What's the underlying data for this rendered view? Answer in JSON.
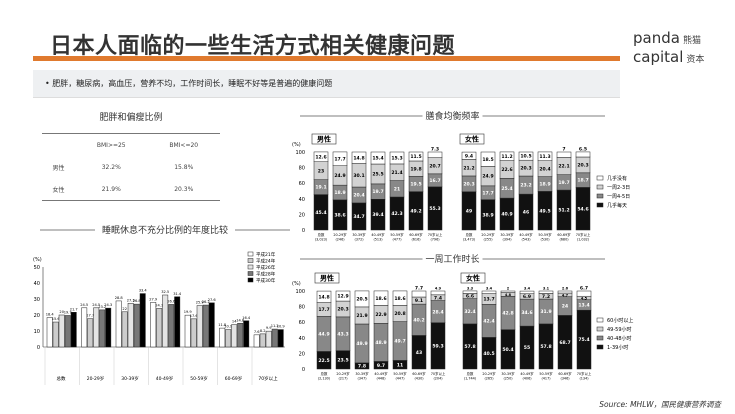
{
  "header": {
    "title": "日本人面临的一些生活方式相关健康问题",
    "logo_en_1": "panda",
    "logo_en_2": "capital",
    "logo_cn_1": "熊猫",
    "logo_cn_2": "资本"
  },
  "note": "• 肥胖，糖尿病，高血压，营养不均，工作时间长，睡眠不好等是普遍的健康问题",
  "colors": {
    "accent": "#e07a2e",
    "black": "#111111",
    "dark_gray": "#888888",
    "light_gray": "#d2d2d2",
    "white": "#ffffff"
  },
  "bmi_table": {
    "title": "肥胖和偏瘦比例",
    "headers": [
      "",
      "BMI>=25",
      "BMI<=20"
    ],
    "rows": [
      [
        "男性",
        "32.2%",
        "15.8%"
      ],
      [
        "女性",
        "21.9%",
        "20.3%"
      ]
    ]
  },
  "source": "Source: MHLW，国民健康营养调查",
  "chart_data": [
    {
      "type": "bar",
      "title": "睡眠休息不充分比例的年度比较",
      "ylabel": "(%)",
      "ylim": [
        0,
        50
      ],
      "yticks": [
        0,
        10,
        20,
        30,
        40,
        50
      ],
      "categories": [
        "总数",
        "20-29岁",
        "30-39岁",
        "40-49岁",
        "50-59岁",
        "60-69岁",
        "70岁以上"
      ],
      "legend": "top-right",
      "series": [
        {
          "name": "平成21年",
          "values": [
            18.4,
            24.5,
            28.8,
            27.9,
            19.9,
            11.8,
            7.6
          ]
        },
        {
          "name": "平成24年",
          "values": [
            15.6,
            17.7,
            22.0,
            24.1,
            17.6,
            10.9,
            8.2
          ]
        },
        {
          "name": "平成26年",
          "values": [
            20.0,
            24.5,
            27.3,
            32.5,
            25.9,
            14.0,
            9.9
          ]
        },
        {
          "name": "平成28年",
          "values": [
            19.7,
            23.2,
            26.8,
            26.6,
            26.2,
            14.8,
            11.2
          ]
        },
        {
          "name": "平成30年",
          "values": [
            21.7,
            24.3,
            33.4,
            31.4,
            27.6,
            16.4,
            10.9
          ]
        }
      ]
    },
    {
      "type": "bar",
      "stacked": true,
      "title": "膳食均衡频率",
      "ylabel": "(%)",
      "ylim": [
        0,
        100
      ],
      "yticks": [
        0,
        20,
        40,
        60,
        80,
        100
      ],
      "legend": "right",
      "groups": [
        {
          "name": "男性",
          "categories": [
            "总数",
            "20-29岁",
            "30-39岁",
            "40-49岁",
            "50-59岁",
            "60-69岁",
            "70岁以上"
          ],
          "n": [
            "(3,023)",
            "(246)",
            "(372)",
            "(513)",
            "(477)",
            "(616)",
            "(796)"
          ],
          "values": [
            [
              45.4,
              19.1,
              23.0,
              12.6
            ],
            [
              38.6,
              18.9,
              24.9,
              17.7
            ],
            [
              34.7,
              20.4,
              30.1,
              14.8
            ],
            [
              39.4,
              19.7,
              25.5,
              15.4
            ],
            [
              42.3,
              21.0,
              21.4,
              15.3
            ],
            [
              49.2,
              19.5,
              19.8,
              11.5
            ],
            [
              55.3,
              16.7,
              20.7,
              7.3
            ]
          ]
        },
        {
          "name": "女性",
          "categories": [
            "总数",
            "20-29岁",
            "30-39岁",
            "40-49岁",
            "50-59岁",
            "60-69岁",
            "70岁以上"
          ],
          "n": [
            "(3,473)",
            "(255)",
            "(394)",
            "(543)",
            "(530)",
            "(680)",
            "(1,032)"
          ],
          "values": [
            [
              49.0,
              20.3,
              21.2,
              9.4
            ],
            [
              38.9,
              17.7,
              24.9,
              18.5
            ],
            [
              40.9,
              25.4,
              22.6,
              11.2
            ],
            [
              46.0,
              23.2,
              20.3,
              10.5
            ],
            [
              49.5,
              18.9,
              20.4,
              11.3
            ],
            [
              51.2,
              19.7,
              22.1,
              7.0
            ],
            [
              54.6,
              18.7,
              20.3,
              6.5
            ]
          ]
        }
      ],
      "series_names": [
        "几乎每天",
        "一周4-5日",
        "一周2-3日",
        "几乎没有"
      ]
    },
    {
      "type": "bar",
      "stacked": true,
      "title": "一周工作时长",
      "ylabel": "(%)",
      "ylim": [
        0,
        100
      ],
      "yticks": [
        0,
        20,
        40,
        60,
        80,
        100
      ],
      "legend": "right",
      "groups": [
        {
          "name": "男性",
          "categories": [
            "总数",
            "20-29岁",
            "30-39岁",
            "40-49岁",
            "50-59岁",
            "60-69岁",
            "70岁以上"
          ],
          "n": [
            "(2,130)",
            "(217)",
            "(347)",
            "(448)",
            "(447)",
            "(430)",
            "(204)"
          ],
          "values": [
            [
              22.5,
              44.9,
              17.7,
              14.8
            ],
            [
              23.5,
              43.3,
              20.3,
              12.9
            ],
            [
              7.8,
              49.9,
              21.9,
              20.5
            ],
            [
              9.7,
              48.9,
              22.9,
              18.6
            ],
            [
              11.0,
              49.7,
              20.8,
              18.6
            ],
            [
              43.0,
              40.2,
              9.1,
              7.7
            ],
            [
              59.3,
              28.4,
              7.4,
              4.9
            ]
          ]
        },
        {
          "name": "女性",
          "categories": [
            "总数",
            "20-29岁",
            "30-39岁",
            "40-49岁",
            "50-59岁",
            "60-69岁",
            "70岁以上"
          ],
          "n": [
            "(1,744)",
            "(265)",
            "(250)",
            "(406)",
            "(417)",
            "(346)",
            "(134)"
          ],
          "values": [
            [
              57.8,
              32.4,
              6.6,
              3.3
            ],
            [
              40.5,
              42.4,
              13.7,
              3.4
            ],
            [
              50.4,
              42.8,
              4.8,
              2.0
            ],
            [
              55.0,
              34.6,
              6.9,
              3.4
            ],
            [
              57.8,
              31.9,
              7.2,
              3.1
            ],
            [
              68.7,
              24.0,
              4.7,
              2.6
            ],
            [
              75.4,
              13.4,
              4.5,
              6.7
            ]
          ]
        }
      ],
      "series_names": [
        "1-39小时",
        "40-48小时",
        "49-59小时",
        "60小时以上"
      ]
    }
  ]
}
